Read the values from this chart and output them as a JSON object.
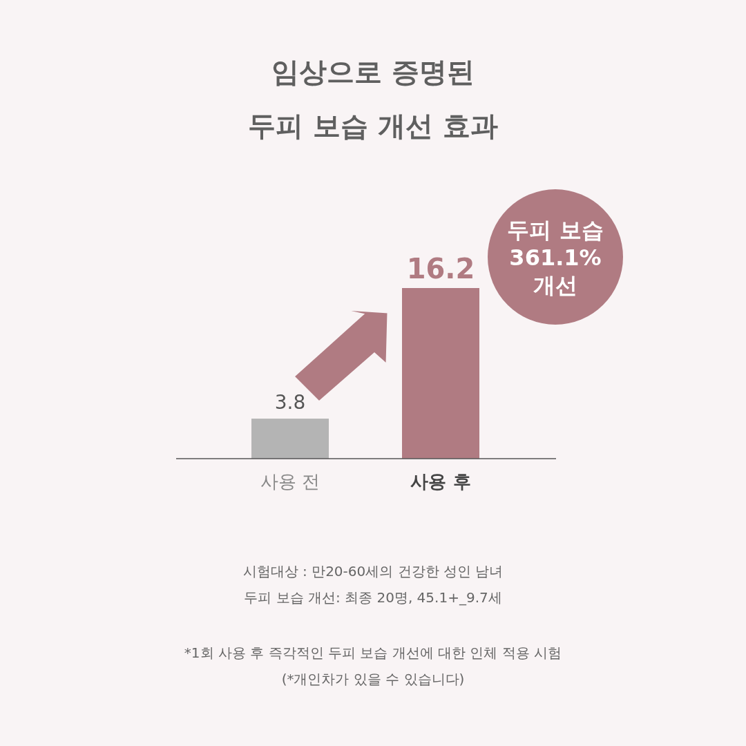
{
  "chart_data": {
    "type": "bar",
    "title": "임상으로 증명된\n두피 보습 개선 효과",
    "categories": [
      "사용 전",
      "사용 후"
    ],
    "values": [
      3.8,
      16.2
    ],
    "colors": [
      "#b4b4b4",
      "#b07b82"
    ],
    "data_labels": true,
    "annotations": [
      "두피 보습\n361.1%\n개선",
      "시험대상 : 만20-60세의 건강한 성인 남녀",
      "두피 보습 개선: 최종 20명, 45.1+_9.7세",
      "*1회 사용 후 즉각적인 두피 보습 개선에 대한 인체 적용 시험",
      "(*개인차가 있을 수 있습니다)"
    ]
  }
}
